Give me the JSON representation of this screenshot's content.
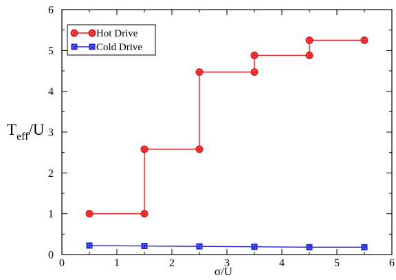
{
  "chart_data": {
    "type": "line",
    "xlabel": "σ/U",
    "ylabel_main": "T",
    "ylabel_sub": "eff",
    "ylabel_suffix": "/U",
    "xlim": [
      0,
      6
    ],
    "ylim": [
      0,
      6
    ],
    "xticks": [
      "0",
      "1",
      "2",
      "3",
      "4",
      "5",
      "6"
    ],
    "yticks": [
      "0",
      "1",
      "2",
      "3",
      "4",
      "5",
      "6"
    ],
    "grid": false,
    "legend_position": "top-left",
    "series": [
      {
        "name": "Hot Drive",
        "color": "#e8191b",
        "marker": "circle",
        "points": [
          [
            0.5,
            1.0
          ],
          [
            1.5,
            1.0
          ],
          [
            1.5,
            2.58
          ],
          [
            2.5,
            2.58
          ],
          [
            2.5,
            4.47
          ],
          [
            3.5,
            4.47
          ],
          [
            3.5,
            4.88
          ],
          [
            4.5,
            4.88
          ],
          [
            4.5,
            5.25
          ],
          [
            5.5,
            5.25
          ]
        ]
      },
      {
        "name": "Cold Drive",
        "color": "#1d21e0",
        "marker": "square",
        "points": [
          [
            0.5,
            0.22
          ],
          [
            1.5,
            0.21
          ],
          [
            2.5,
            0.2
          ],
          [
            3.5,
            0.19
          ],
          [
            4.5,
            0.18
          ],
          [
            5.5,
            0.18
          ]
        ]
      }
    ]
  }
}
